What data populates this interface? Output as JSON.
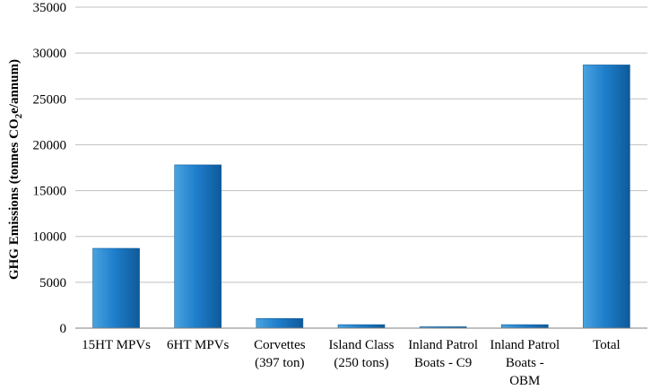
{
  "chart_data": {
    "type": "bar",
    "title": "",
    "xlabel": "",
    "ylabel": {
      "before": "GHG Emissions (tonnes CO",
      "subscript": "2",
      "after": "e/annum)"
    },
    "ylim": [
      0,
      35000
    ],
    "yticks": [
      0,
      5000,
      10000,
      15000,
      20000,
      25000,
      30000,
      35000
    ],
    "categories": [
      [
        "15HT MPVs"
      ],
      [
        "6HT MPVs"
      ],
      [
        "Corvettes",
        "(397 ton)"
      ],
      [
        "Island Class",
        "(250 tons)"
      ],
      [
        "Inland Patrol",
        "Boats - C9"
      ],
      [
        "Inland Patrol",
        "Boats -",
        "OBM"
      ],
      [
        "Total"
      ]
    ],
    "values": [
      8700,
      17800,
      1050,
      380,
      150,
      380,
      28700
    ],
    "grid": true,
    "legend": "none",
    "colors": {
      "bar_light": "#4aa3e0",
      "bar_mid": "#1f7fcc",
      "bar_dark": "#0e5a9a",
      "grid": "#bfbfbf",
      "axis": "#808080"
    }
  }
}
